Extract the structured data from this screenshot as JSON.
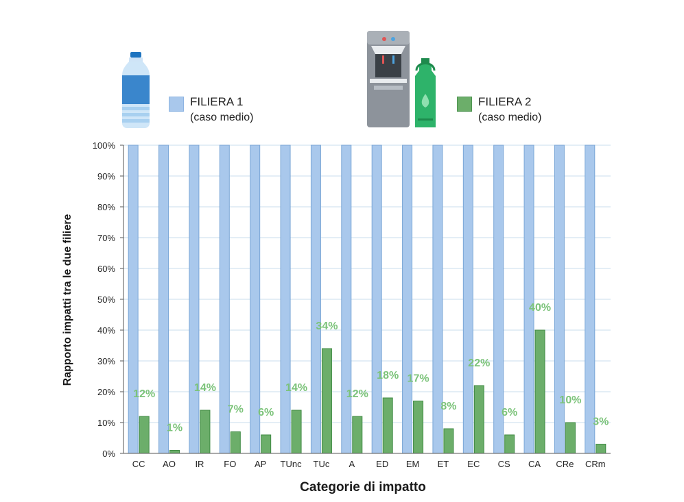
{
  "legend": {
    "series1": {
      "name": "FILIERA 1",
      "sub": "(caso medio)",
      "color": "#a9c8ec",
      "icon": "water-bottle-icon"
    },
    "series2": {
      "name": "FILIERA 2",
      "sub": "(caso medio)",
      "color": "#6cae6a",
      "icon": "water-dispenser-and-flask-icon"
    }
  },
  "chart_data": {
    "type": "bar",
    "title": "",
    "xlabel": "Categorie di impatto",
    "ylabel": "Rapporto impatti tra le due filiere",
    "ylim": [
      0,
      100
    ],
    "yticks": [
      "0%",
      "10%",
      "20%",
      "30%",
      "40%",
      "50%",
      "60%",
      "70%",
      "80%",
      "90%",
      "100%"
    ],
    "grid": true,
    "legend_position": "top",
    "categories": [
      "CC",
      "AO",
      "IR",
      "FO",
      "AP",
      "TUnc",
      "TUc",
      "A",
      "ED",
      "EM",
      "ET",
      "EC",
      "CS",
      "CA",
      "CRe",
      "CRm"
    ],
    "series": [
      {
        "name": "FILIERA 1",
        "color": "#a9c8ec",
        "edge": "#7aa6d6",
        "values": [
          100,
          100,
          100,
          100,
          100,
          100,
          100,
          100,
          100,
          100,
          100,
          100,
          100,
          100,
          100,
          100
        ]
      },
      {
        "name": "FILIERA 2",
        "color": "#6cae6a",
        "edge": "#3f8a43",
        "values": [
          12,
          1,
          14,
          7,
          6,
          14,
          34,
          12,
          18,
          17,
          8,
          22,
          6,
          40,
          10,
          3
        ],
        "labels": [
          "12%",
          "1%",
          "14%",
          "7%",
          "6%",
          "14%",
          "34%",
          "12%",
          "18%",
          "17%",
          "8%",
          "22%",
          "6%",
          "40%",
          "10%",
          "3%"
        ],
        "label_color": "#7cc37a"
      }
    ]
  }
}
